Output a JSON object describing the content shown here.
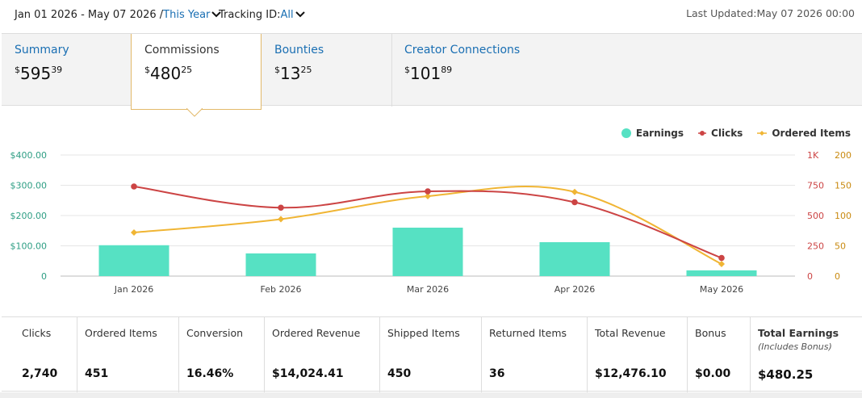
{
  "header": {
    "date_range": "Jan 01 2026 - May 07 2026 /",
    "range_select": "This Year",
    "tracking_label": "Tracking ID:",
    "tracking_value": "All",
    "last_updated": "Last Updated:May 07 2026 00:00"
  },
  "tabs": [
    {
      "title": "Summary",
      "currency": "$",
      "whole": "595",
      "cents": "39"
    },
    {
      "title": "Commissions",
      "currency": "$",
      "whole": "480",
      "cents": "25",
      "active": true
    },
    {
      "title": "Bounties",
      "currency": "$",
      "whole": "13",
      "cents": "25"
    },
    {
      "title": "Creator Connections",
      "currency": "$",
      "whole": "101",
      "cents": "89"
    }
  ],
  "legend": [
    {
      "label": "Earnings",
      "color": "#56e1c3",
      "shape": "circle"
    },
    {
      "label": "Clicks",
      "color": "#cc4444",
      "shape": "circle"
    },
    {
      "label": "Ordered Items",
      "color": "#f0b534",
      "shape": "diamond"
    }
  ],
  "chart_data": {
    "type": "bar",
    "categories": [
      "Jan 2026",
      "Feb 2026",
      "Mar 2026",
      "Apr 2026",
      "May 2026"
    ],
    "series": [
      {
        "name": "Earnings",
        "type": "bar",
        "axis": "left",
        "values": [
          102,
          75,
          160,
          112,
          19
        ]
      },
      {
        "name": "Clicks",
        "type": "line",
        "axis": "right1",
        "values": [
          740,
          565,
          700,
          610,
          150
        ]
      },
      {
        "name": "Ordered Items",
        "type": "line",
        "axis": "right2",
        "values": [
          72,
          94,
          132,
          139,
          20
        ]
      }
    ],
    "left_axis": {
      "ticks": [
        "0",
        "$100.00",
        "$200.00",
        "$300.00",
        "$400.00"
      ],
      "ylim": [
        0,
        400
      ],
      "color": "#2e9e84"
    },
    "right1_axis": {
      "ticks": [
        "0",
        "250",
        "500",
        "750",
        "1K"
      ],
      "ylim": [
        0,
        1000
      ],
      "color": "#cc4444"
    },
    "right2_axis": {
      "ticks": [
        "0",
        "50",
        "100",
        "150",
        "200"
      ],
      "ylim": [
        0,
        200
      ],
      "color": "#c98a10"
    },
    "grid": true,
    "legend_position": "top-right"
  },
  "stats": [
    {
      "label": "Clicks",
      "value": "2,740"
    },
    {
      "label": "Ordered Items",
      "value": "451"
    },
    {
      "label": "Conversion",
      "value": "16.46%"
    },
    {
      "label": "Ordered Revenue",
      "value": "$14,024.41"
    },
    {
      "label": "Shipped Items",
      "value": "450"
    },
    {
      "label": "Returned Items",
      "value": "36"
    },
    {
      "label": "Total Revenue",
      "value": "$12,476.10"
    },
    {
      "label": "Bonus",
      "value": "$0.00"
    },
    {
      "label": "Total Earnings",
      "sub": "(Includes Bonus)",
      "value": "$480.25"
    }
  ]
}
